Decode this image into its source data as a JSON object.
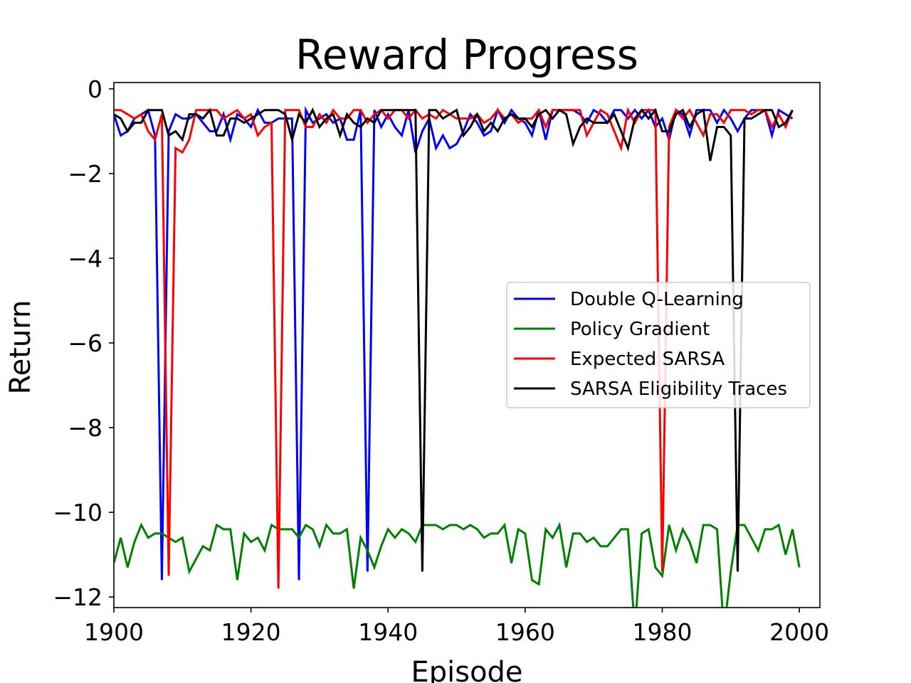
{
  "chart_data": {
    "type": "line",
    "title": "Reward Progress",
    "xlabel": "Episode",
    "ylabel": "Return",
    "xlim": [
      1900,
      2003
    ],
    "ylim": [
      -12.25,
      0.15
    ],
    "xticks": [
      1900,
      1920,
      1940,
      1960,
      1980,
      2000
    ],
    "yticks": [
      0,
      -2,
      -4,
      -6,
      -8,
      -10,
      -12
    ],
    "xtick_labels": [
      "1900",
      "1920",
      "1940",
      "1960",
      "1980",
      "2000"
    ],
    "ytick_labels": [
      "0",
      "−2",
      "−4",
      "−6",
      "−8",
      "−10",
      "−12"
    ],
    "legend_position": "center-right",
    "grid": false,
    "x_start": 1900,
    "series": [
      {
        "name": "Double Q-Learning",
        "color": "#0000ff",
        "values": [
          -0.6,
          -1.1,
          -1.0,
          -0.7,
          -0.6,
          -0.5,
          -1.1,
          -11.6,
          -1.0,
          -0.6,
          -0.7,
          -0.7,
          -0.6,
          -0.8,
          -1.0,
          -1.0,
          -0.6,
          -1.2,
          -0.6,
          -0.7,
          -0.9,
          -0.5,
          -0.8,
          -0.8,
          -0.7,
          -0.7,
          -0.7,
          -11.6,
          -0.5,
          -0.8,
          -0.7,
          -0.6,
          -0.8,
          -0.7,
          -1.2,
          -1.2,
          -0.5,
          -11.4,
          -0.5,
          -0.9,
          -0.6,
          -0.9,
          -1.1,
          -0.5,
          -1.5,
          -1.0,
          -0.7,
          -1.4,
          -1.1,
          -1.4,
          -1.3,
          -1.0,
          -0.6,
          -0.8,
          -1.1,
          -1.0,
          -0.5,
          -0.8,
          -0.5,
          -0.7,
          -0.8,
          -1.1,
          -0.5,
          -1.2,
          -0.5,
          -0.5,
          -0.5,
          -0.5,
          -0.6,
          -0.8,
          -0.5,
          -0.6,
          -0.8,
          -0.5,
          -0.5,
          -0.7,
          -0.5,
          -0.7,
          -0.5,
          -0.9,
          -0.7,
          -1.2,
          -0.5,
          -0.6,
          -1.1,
          -0.5,
          -0.5,
          -0.5,
          -0.8,
          -0.5,
          -0.7,
          -1.0,
          -0.7,
          -0.5,
          -0.5,
          -0.5,
          -1.1,
          -0.5,
          -0.6,
          -0.7
        ]
      },
      {
        "name": "Policy Gradient",
        "color": "#008000",
        "values": [
          -11.2,
          -10.6,
          -11.3,
          -10.7,
          -10.3,
          -10.6,
          -10.5,
          -10.5,
          -10.6,
          -10.7,
          -10.6,
          -11.4,
          -11.1,
          -10.8,
          -10.9,
          -10.3,
          -10.4,
          -10.4,
          -11.6,
          -10.5,
          -10.7,
          -10.6,
          -10.9,
          -10.3,
          -10.4,
          -10.4,
          -10.4,
          -10.6,
          -10.3,
          -10.4,
          -10.8,
          -10.3,
          -10.5,
          -10.5,
          -10.4,
          -11.8,
          -10.6,
          -10.9,
          -11.3,
          -10.8,
          -10.4,
          -10.6,
          -10.4,
          -10.5,
          -10.7,
          -10.3,
          -10.3,
          -10.3,
          -10.4,
          -10.3,
          -10.3,
          -10.4,
          -10.3,
          -10.4,
          -10.6,
          -10.5,
          -10.5,
          -10.3,
          -11.2,
          -10.4,
          -10.5,
          -11.6,
          -11.7,
          -10.4,
          -10.6,
          -10.3,
          -11.3,
          -10.5,
          -10.5,
          -10.7,
          -10.6,
          -10.8,
          -10.8,
          -10.6,
          -10.4,
          -10.4,
          -12.8,
          -10.5,
          -10.4,
          -11.3,
          -11.5,
          -10.3,
          -10.9,
          -10.4,
          -10.7,
          -11.2,
          -10.3,
          -10.3,
          -10.4,
          -12.8,
          -11.4,
          -10.3,
          -10.3,
          -10.6,
          -10.9,
          -10.4,
          -10.4,
          -10.3,
          -11.0,
          -10.4,
          -11.3
        ]
      },
      {
        "name": "Expected SARSA",
        "color": "#ff0000",
        "values": [
          -0.5,
          -0.5,
          -0.6,
          -0.7,
          -0.6,
          -1.0,
          -1.2,
          -0.6,
          -11.5,
          -1.4,
          -1.5,
          -1.2,
          -0.5,
          -0.5,
          -0.5,
          -0.5,
          -0.7,
          -0.6,
          -0.5,
          -0.7,
          -0.6,
          -1.1,
          -0.9,
          -0.8,
          -11.8,
          -0.5,
          -0.5,
          -0.5,
          -0.9,
          -0.9,
          -0.6,
          -0.8,
          -0.5,
          -0.7,
          -0.7,
          -0.5,
          -0.5,
          -0.8,
          -0.6,
          -0.5,
          -0.7,
          -0.5,
          -0.5,
          -0.7,
          -0.5,
          -0.7,
          -0.6,
          -0.7,
          -0.5,
          -0.6,
          -0.7,
          -0.7,
          -0.7,
          -0.6,
          -0.8,
          -0.7,
          -0.5,
          -0.7,
          -0.6,
          -0.8,
          -0.7,
          -0.7,
          -0.5,
          -0.9,
          -0.5,
          -0.5,
          -0.5,
          -0.5,
          -0.5,
          -1.1,
          -0.8,
          -0.5,
          -0.6,
          -1.0,
          -1.4,
          -0.5,
          -0.8,
          -0.5,
          -0.5,
          -0.5,
          -11.4,
          -0.9,
          -0.5,
          -0.7,
          -0.5,
          -0.8,
          -1.1,
          -0.6,
          -0.6,
          -0.8,
          -0.5,
          -0.5,
          -0.5,
          -0.6,
          -0.5,
          -0.5,
          -0.9,
          -0.6,
          -0.9,
          -0.5
        ]
      },
      {
        "name": "SARSA Eligibility Traces",
        "color": "#000000",
        "values": [
          -0.6,
          -0.7,
          -1.0,
          -0.8,
          -0.8,
          -0.5,
          -0.5,
          -0.5,
          -1.1,
          -1.0,
          -1.2,
          -0.6,
          -0.6,
          -0.7,
          -0.5,
          -1.1,
          -1.1,
          -0.7,
          -0.7,
          -0.8,
          -0.7,
          -0.6,
          -0.5,
          -0.5,
          -0.5,
          -0.6,
          -1.2,
          -0.6,
          -0.8,
          -0.5,
          -0.9,
          -0.7,
          -0.6,
          -1.1,
          -0.6,
          -0.8,
          -0.9,
          -0.7,
          -0.8,
          -0.5,
          -0.5,
          -0.5,
          -0.5,
          -0.5,
          -0.5,
          -11.4,
          -0.5,
          -0.5,
          -0.7,
          -0.6,
          -0.5,
          -1.1,
          -0.9,
          -0.6,
          -1.0,
          -0.8,
          -1.0,
          -0.7,
          -0.6,
          -0.7,
          -0.7,
          -0.9,
          -0.6,
          -0.5,
          -0.7,
          -0.5,
          -0.6,
          -1.3,
          -0.9,
          -0.7,
          -0.8,
          -0.8,
          -0.8,
          -0.6,
          -1.0,
          -1.4,
          -0.7,
          -0.5,
          -0.7,
          -0.5,
          -1.0,
          -1.0,
          -0.6,
          -0.5,
          -0.9,
          -0.6,
          -0.5,
          -1.7,
          -0.9,
          -0.9,
          -1.1,
          -11.4,
          -0.7,
          -0.7,
          -0.6,
          -0.5,
          -0.5,
          -0.9,
          -0.8,
          -0.5
        ]
      }
    ]
  }
}
